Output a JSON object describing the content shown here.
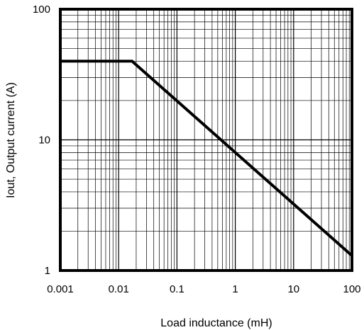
{
  "chart_data": {
    "type": "line",
    "xscale": "log",
    "yscale": "log",
    "xlim": [
      0.001,
      100
    ],
    "ylim": [
      1,
      100
    ],
    "xlabel": "Load inductance (mH)",
    "ylabel": "Iout, Output current (A)",
    "x_tick_labels": [
      "0.001",
      "0.01",
      "0.1",
      "1",
      "10",
      "100"
    ],
    "x_tick_values": [
      0.001,
      0.01,
      0.1,
      1,
      10,
      100
    ],
    "y_tick_labels": [
      "1",
      "10",
      "100"
    ],
    "y_tick_values": [
      1,
      10,
      100
    ],
    "grid": true,
    "series": [
      {
        "points": [
          {
            "x": 0.001,
            "y": 40
          },
          {
            "x": 0.017,
            "y": 40
          },
          {
            "x": 100,
            "y": 1.3
          }
        ],
        "color": "#000000"
      }
    ]
  }
}
